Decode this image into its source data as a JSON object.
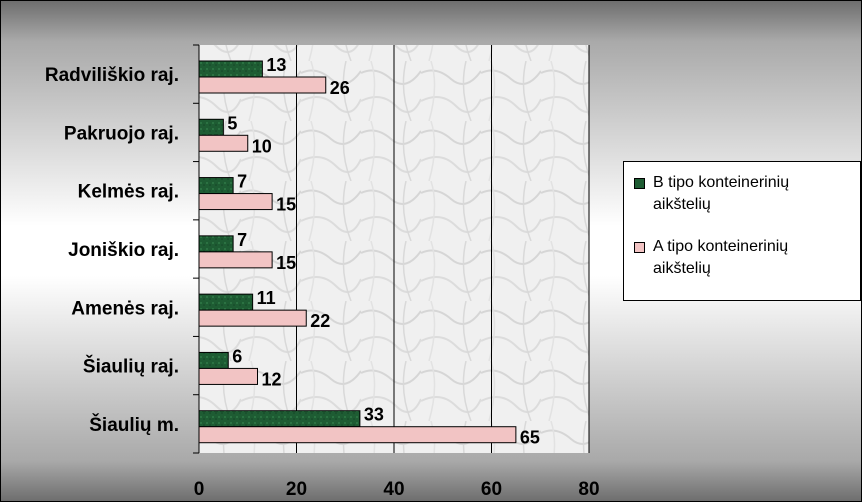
{
  "chart_data": {
    "type": "bar",
    "orientation": "horizontal",
    "categories": [
      "Radviliškio raj.",
      "Pakruojo raj.",
      "Kelmės raj.",
      "Joniškio raj.",
      "Amenės raj.",
      "Šiaulių raj.",
      "Šiaulių m."
    ],
    "series": [
      {
        "name": "B tipo konteinerinių\naikštelių",
        "values": [
          13,
          5,
          7,
          7,
          11,
          6,
          33
        ],
        "color": "#1e5c33"
      },
      {
        "name": "A tipo konteinerinių\naikštelių",
        "values": [
          26,
          10,
          15,
          15,
          22,
          12,
          65
        ],
        "color": "#f2c4c4"
      }
    ],
    "xlim": [
      0,
      80
    ],
    "x_ticks": [
      "0",
      "20",
      "40",
      "60",
      "80"
    ],
    "grid": true,
    "legend_position": "right",
    "plot_background": "#f2f2f2"
  }
}
